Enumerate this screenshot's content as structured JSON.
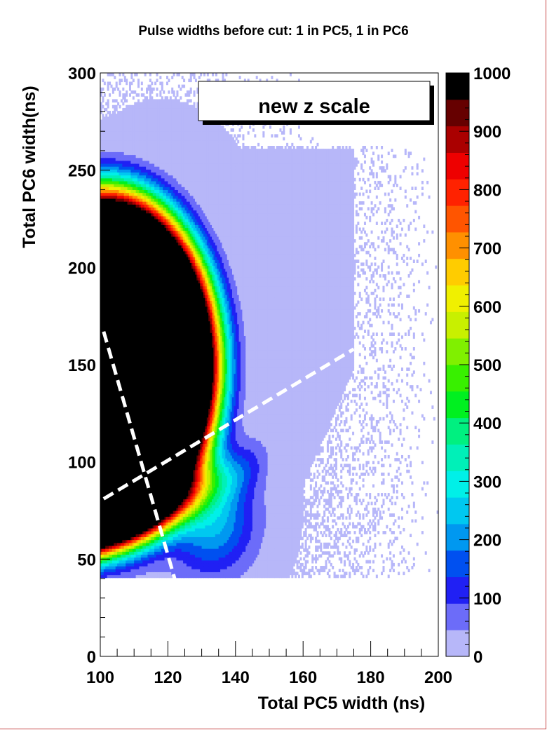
{
  "chart_data": {
    "type": "heatmap",
    "title": "Pulse widths before cut: 1 in PC5, 1 in PC6",
    "xlabel": "Total PC5 width (ns)",
    "ylabel": "Total PC6 width(ns)",
    "xlim": [
      100,
      200
    ],
    "ylim": [
      0,
      300
    ],
    "zlim": [
      0,
      1000
    ],
    "x_ticks": [
      "100",
      "120",
      "140",
      "160",
      "180",
      "200"
    ],
    "y_ticks": [
      "0",
      "50",
      "100",
      "150",
      "200",
      "250",
      "300"
    ],
    "z_ticks": [
      "0",
      "100",
      "200",
      "300",
      "400",
      "500",
      "600",
      "700",
      "800",
      "900",
      "1000"
    ],
    "palette": [
      "#b7b7f9",
      "#6c6cf9",
      "#2020f4",
      "#0050f0",
      "#0098f0",
      "#00c8f0",
      "#00f0e8",
      "#00f0b8",
      "#00f080",
      "#00f020",
      "#38f000",
      "#80f000",
      "#c8f000",
      "#f0f000",
      "#ffcc00",
      "#ff9000",
      "#ff5500",
      "#ff2200",
      "#ee0000",
      "#aa0000",
      "#660000",
      "#000000"
    ],
    "annotation": "new z scale",
    "grid": false,
    "cut_lines": [
      {
        "x1": 101,
        "y1": 167,
        "x2": 122,
        "y2": 40
      },
      {
        "x1": 101,
        "y1": 81,
        "x2": 175,
        "y2": 158
      }
    ]
  }
}
